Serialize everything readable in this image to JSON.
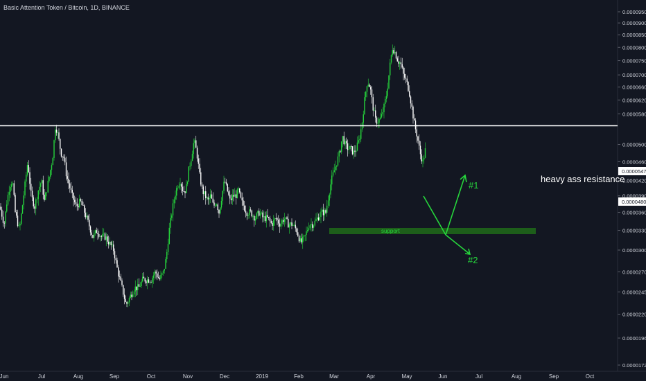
{
  "chart_data": {
    "type": "candlestick",
    "title": "Basic Attention Token / Bitcoin, 1D, BINANCE",
    "y_scale": "log",
    "ylim": [
      1.72e-05,
      9.8e-05
    ],
    "y_ticks": [
      "0.00009500",
      "0.00009000",
      "0.00008500",
      "0.00008000",
      "0.00007500",
      "0.00007000",
      "0.00006600",
      "0.00006200",
      "0.00005800",
      "0.00005000",
      "0.00004600",
      "0.00004200",
      "0.00003900",
      "0.00003600",
      "0.00003300",
      "0.00003000",
      "0.00002700",
      "0.00002450",
      "0.00002200",
      "0.00001960",
      "0.00001720"
    ],
    "x_ticks": [
      "Jun",
      "Jul",
      "Aug",
      "Sep",
      "Oct",
      "Nov",
      "Dec",
      "2019",
      "Feb",
      "Mar",
      "Apr",
      "May",
      "Jun",
      "Jul",
      "Aug",
      "Sep",
      "Oct"
    ],
    "current_price_label": "0.00004807",
    "resistance_price_label": "0.00005475",
    "resistance_value": 5.475e-05,
    "current_value": 4.807e-05,
    "series_path": [
      [
        0,
        3.7e-05
      ],
      [
        6,
        3.4e-05
      ],
      [
        10,
        3.8e-05
      ],
      [
        14,
        4.1e-05
      ],
      [
        18,
        4.2e-05
      ],
      [
        22,
        3.6e-05
      ],
      [
        28,
        3.3e-05
      ],
      [
        35,
        4e-05
      ],
      [
        40,
        4.6e-05
      ],
      [
        45,
        3.9e-05
      ],
      [
        50,
        3.7e-05
      ],
      [
        55,
        4e-05
      ],
      [
        60,
        4.2e-05
      ],
      [
        64,
        3.8e-05
      ],
      [
        70,
        4.2e-05
      ],
      [
        76,
        4.7e-05
      ],
      [
        80,
        5.5e-05
      ],
      [
        84,
        5.2e-05
      ],
      [
        88,
        4.8e-05
      ],
      [
        92,
        4.7e-05
      ],
      [
        96,
        4.3e-05
      ],
      [
        100,
        4.1e-05
      ],
      [
        104,
        3.9e-05
      ],
      [
        110,
        3.7e-05
      ],
      [
        116,
        3.8e-05
      ],
      [
        122,
        3.6e-05
      ],
      [
        128,
        3.4e-05
      ],
      [
        134,
        3.2e-05
      ],
      [
        140,
        3.3e-05
      ],
      [
        146,
        3.2e-05
      ],
      [
        152,
        3.2e-05
      ],
      [
        158,
        3.1e-05
      ],
      [
        164,
        3e-05
      ],
      [
        170,
        2.7e-05
      ],
      [
        176,
        2.5e-05
      ],
      [
        182,
        2.3e-05
      ],
      [
        188,
        2.4e-05
      ],
      [
        194,
        2.5e-05
      ],
      [
        200,
        2.5e-05
      ],
      [
        206,
        2.6e-05
      ],
      [
        212,
        2.6e-05
      ],
      [
        218,
        2.6e-05
      ],
      [
        224,
        2.7e-05
      ],
      [
        230,
        2.6e-05
      ],
      [
        236,
        2.7e-05
      ],
      [
        240,
        2.9e-05
      ],
      [
        244,
        3.3e-05
      ],
      [
        248,
        3.6e-05
      ],
      [
        252,
        3.9e-05
      ],
      [
        256,
        4.1e-05
      ],
      [
        260,
        4.2e-05
      ],
      [
        264,
        4e-05
      ],
      [
        268,
        4e-05
      ],
      [
        272,
        4.4e-05
      ],
      [
        276,
        4.7e-05
      ],
      [
        280,
        5.1e-05
      ],
      [
        284,
        4.8e-05
      ],
      [
        288,
        4.3e-05
      ],
      [
        292,
        4e-05
      ],
      [
        296,
        3.9e-05
      ],
      [
        300,
        3.8e-05
      ],
      [
        304,
        3.9e-05
      ],
      [
        308,
        3.7e-05
      ],
      [
        312,
        3.8e-05
      ],
      [
        316,
        3.6e-05
      ],
      [
        320,
        3.9e-05
      ],
      [
        324,
        4.2e-05
      ],
      [
        328,
        4e-05
      ],
      [
        332,
        3.8e-05
      ],
      [
        336,
        3.9e-05
      ],
      [
        340,
        3.9e-05
      ],
      [
        344,
        4e-05
      ],
      [
        348,
        3.8e-05
      ],
      [
        352,
        3.7e-05
      ],
      [
        356,
        3.6e-05
      ],
      [
        362,
        3.6e-05
      ],
      [
        368,
        3.5e-05
      ],
      [
        374,
        3.6e-05
      ],
      [
        380,
        3.5e-05
      ],
      [
        386,
        3.5e-05
      ],
      [
        392,
        3.4e-05
      ],
      [
        398,
        3.5e-05
      ],
      [
        404,
        3.4e-05
      ],
      [
        410,
        3.5e-05
      ],
      [
        416,
        3.4e-05
      ],
      [
        422,
        3.4e-05
      ],
      [
        428,
        3.3e-05
      ],
      [
        434,
        3.1e-05
      ],
      [
        440,
        3.2e-05
      ],
      [
        446,
        3.4e-05
      ],
      [
        452,
        3.4e-05
      ],
      [
        458,
        3.5e-05
      ],
      [
        464,
        3.6e-05
      ],
      [
        470,
        3.6e-05
      ],
      [
        474,
        3.9e-05
      ],
      [
        478,
        4.2e-05
      ],
      [
        482,
        4.4e-05
      ],
      [
        486,
        4.6e-05
      ],
      [
        490,
        4.8e-05
      ],
      [
        494,
        5.2e-05
      ],
      [
        498,
        5e-05
      ],
      [
        502,
        4.9e-05
      ],
      [
        506,
        4.9e-05
      ],
      [
        510,
        4.8e-05
      ],
      [
        514,
        4.9e-05
      ],
      [
        518,
        5.1e-05
      ],
      [
        522,
        5.5e-05
      ],
      [
        526,
        6.2e-05
      ],
      [
        530,
        6.8e-05
      ],
      [
        534,
        6.6e-05
      ],
      [
        538,
        6e-05
      ],
      [
        542,
        5.6e-05
      ],
      [
        546,
        5.6e-05
      ],
      [
        550,
        5.7e-05
      ],
      [
        554,
        6e-05
      ],
      [
        558,
        6.4e-05
      ],
      [
        562,
        7.2e-05
      ],
      [
        566,
        8e-05
      ],
      [
        570,
        7.8e-05
      ],
      [
        574,
        7.5e-05
      ],
      [
        578,
        7.4e-05
      ],
      [
        582,
        7e-05
      ],
      [
        586,
        6.8e-05
      ],
      [
        590,
        6.5e-05
      ],
      [
        594,
        6e-05
      ],
      [
        598,
        5.5e-05
      ],
      [
        602,
        5.2e-05
      ],
      [
        606,
        4.8e-05
      ],
      [
        610,
        4.6e-05
      ],
      [
        614,
        4.9e-05
      ]
    ],
    "annotations": {
      "resistance_text": "heavy ass resistance",
      "support_text": "support",
      "scenario_1": "#1",
      "scenario_2": "#2"
    },
    "colors": {
      "background": "#131722",
      "up": "#26d63c",
      "down": "#ffffff",
      "resistance_line": "#ffffff",
      "support_box": "#1d5e1a",
      "arrows": "#26d63c"
    }
  }
}
